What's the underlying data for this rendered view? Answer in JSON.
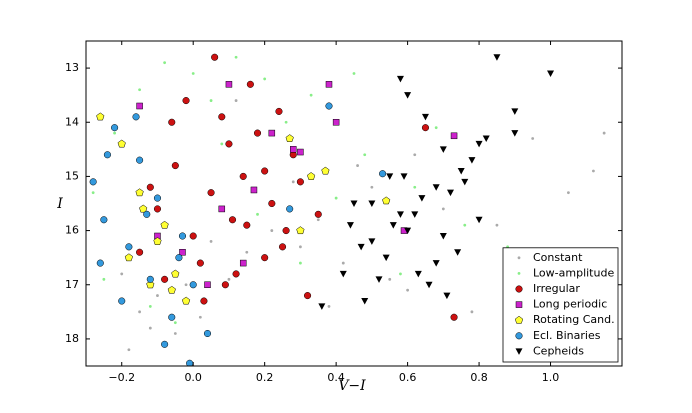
{
  "chart_data": {
    "type": "scatter",
    "x_label": "V−I",
    "y_label": "I",
    "xlim": [
      -0.3,
      1.2
    ],
    "ylim": [
      18.5,
      12.5
    ],
    "xticks": [
      {
        "value": -0.2,
        "label": "−0.2"
      },
      {
        "value": 0,
        "label": "0.0"
      },
      0.2,
      0.4,
      0.6,
      0.8,
      {
        "value": 1,
        "label": "1.0"
      }
    ],
    "yticks": [
      13,
      14,
      15,
      16,
      17,
      18
    ],
    "legend": "lower right",
    "series": [
      {
        "name": "Constant",
        "color": "#aaaaaa",
        "marker": "point",
        "x": [
          -0.12,
          -0.08,
          -0.15,
          -0.05,
          0.02,
          0.1,
          0.15,
          0.22,
          0.3,
          0.35,
          0.42,
          0.5,
          0.55,
          0.62,
          0.7,
          0.78,
          0.85,
          0.95,
          1.05,
          1.12,
          -0.18,
          -0.1,
          -0.02,
          0.05,
          0.28,
          0.38,
          0.46,
          0.6,
          0.9,
          1.15,
          -0.2,
          0.12
        ],
        "y": [
          17.8,
          18.1,
          17.5,
          17.9,
          17.6,
          16.9,
          16.4,
          16.0,
          16.3,
          15.8,
          16.6,
          15.2,
          16.9,
          14.6,
          15.6,
          17.5,
          15.9,
          14.3,
          15.3,
          14.9,
          18.2,
          17.2,
          17.0,
          16.2,
          15.1,
          17.4,
          14.8,
          17.1,
          16.5,
          14.2,
          16.8,
          13.6
        ]
      },
      {
        "name": "Low-amplitude",
        "color": "#88ee88",
        "marker": "point",
        "x": [
          -0.28,
          -0.22,
          -0.15,
          -0.08,
          0.0,
          0.05,
          0.12,
          0.2,
          0.26,
          0.33,
          0.4,
          0.48,
          0.58,
          0.68,
          0.76,
          0.88,
          -0.25,
          -0.12,
          0.08,
          0.18,
          0.3,
          0.45,
          0.62,
          -0.05
        ],
        "y": [
          15.3,
          14.2,
          13.4,
          12.9,
          13.1,
          13.6,
          12.8,
          13.2,
          14.0,
          13.5,
          15.4,
          14.6,
          16.8,
          14.1,
          15.9,
          16.3,
          16.9,
          17.4,
          14.4,
          15.7,
          16.6,
          13.1,
          15.2,
          17.7
        ]
      },
      {
        "name": "Irregular",
        "color": "#cc1111",
        "marker": "circle",
        "x": [
          -0.15,
          -0.1,
          -0.05,
          0,
          0.05,
          0.1,
          0.15,
          0.2,
          0.25,
          0.3,
          -0.02,
          0.08,
          0.12,
          0.18,
          0.22,
          0.28,
          0.35,
          -0.08,
          0.03,
          0.16,
          0.24,
          0.06,
          -0.12,
          0.11,
          0.2,
          0.32,
          0.65,
          0.73,
          0.02,
          0.14,
          0.26,
          -0.06,
          0.09
        ],
        "y": [
          16.4,
          15.6,
          14.8,
          16.1,
          15.3,
          14.4,
          15.9,
          14.9,
          16.3,
          15.1,
          13.6,
          13.9,
          16.8,
          14.2,
          15.5,
          14.6,
          15.7,
          16.9,
          17.3,
          13.3,
          13.8,
          12.8,
          15.2,
          15.8,
          16.5,
          17.2,
          14.1,
          17.6,
          16.6,
          15.0,
          16.0,
          14.0,
          17.0
        ]
      },
      {
        "name": "Long periodic",
        "color": "#cc22cc",
        "marker": "square",
        "x": [
          0.1,
          0.38,
          0.4,
          0.3,
          0.17,
          -0.15,
          -0.03,
          0.22,
          0.08,
          0.73,
          0.59,
          0.04,
          -0.1,
          0.28,
          0.14
        ],
        "y": [
          13.3,
          13.3,
          14.0,
          14.55,
          15.25,
          13.7,
          16.4,
          14.2,
          15.6,
          14.25,
          16.0,
          17.0,
          16.1,
          14.5,
          16.6
        ]
      },
      {
        "name": "Rotating Cand.",
        "color": "#ffff33",
        "marker": "pentagon",
        "x": [
          -0.26,
          -0.2,
          -0.15,
          -0.1,
          -0.05,
          -0.12,
          -0.18,
          -0.08,
          0.33,
          0.37,
          0.3,
          0.54,
          -0.02,
          0.27,
          -0.14,
          -0.06
        ],
        "y": [
          13.9,
          14.4,
          15.3,
          16.2,
          16.8,
          17.0,
          16.5,
          15.9,
          15.0,
          14.9,
          16.0,
          15.45,
          17.3,
          14.3,
          15.6,
          17.1
        ]
      },
      {
        "name": "Ecl. Binaries",
        "color": "#3399dd",
        "marker": "circle",
        "x": [
          -0.28,
          -0.25,
          -0.22,
          -0.18,
          -0.15,
          -0.12,
          -0.1,
          -0.06,
          -0.03,
          0.0,
          0.04,
          -0.2,
          -0.16,
          -0.08,
          0.38,
          0.53,
          -0.26,
          -0.13,
          -0.04,
          0.27,
          -0.24,
          -0.01
        ],
        "y": [
          15.1,
          15.8,
          14.1,
          16.3,
          14.7,
          16.9,
          15.4,
          17.6,
          16.1,
          17.0,
          17.9,
          17.3,
          13.9,
          18.1,
          13.7,
          14.95,
          16.6,
          15.7,
          16.5,
          15.6,
          14.6,
          18.45
        ]
      },
      {
        "name": "Cepheids",
        "color": "#000000",
        "marker": "triangle-down",
        "x": [
          0.58,
          0.6,
          0.65,
          0.7,
          0.75,
          0.8,
          0.85,
          0.9,
          1.0,
          0.45,
          0.5,
          0.55,
          0.62,
          0.68,
          0.72,
          0.78,
          0.42,
          0.48,
          0.52,
          0.6,
          0.66,
          0.74,
          0.82,
          0.56,
          0.64,
          0.7,
          0.76,
          0.36,
          0.44,
          0.54,
          0.58,
          0.68,
          0.63,
          0.71,
          0.8,
          0.9,
          0.5,
          0.47,
          0.59
        ],
        "y": [
          13.2,
          13.5,
          13.9,
          14.5,
          14.9,
          14.4,
          12.8,
          13.8,
          13.1,
          15.5,
          16.2,
          15.0,
          15.7,
          16.6,
          15.3,
          14.7,
          16.8,
          17.3,
          16.9,
          16.0,
          17.0,
          16.4,
          14.3,
          15.9,
          15.4,
          16.1,
          15.1,
          17.4,
          15.9,
          16.5,
          15.7,
          15.2,
          16.8,
          17.2,
          15.8,
          14.2,
          15.5,
          16.3,
          15.0
        ]
      }
    ]
  }
}
